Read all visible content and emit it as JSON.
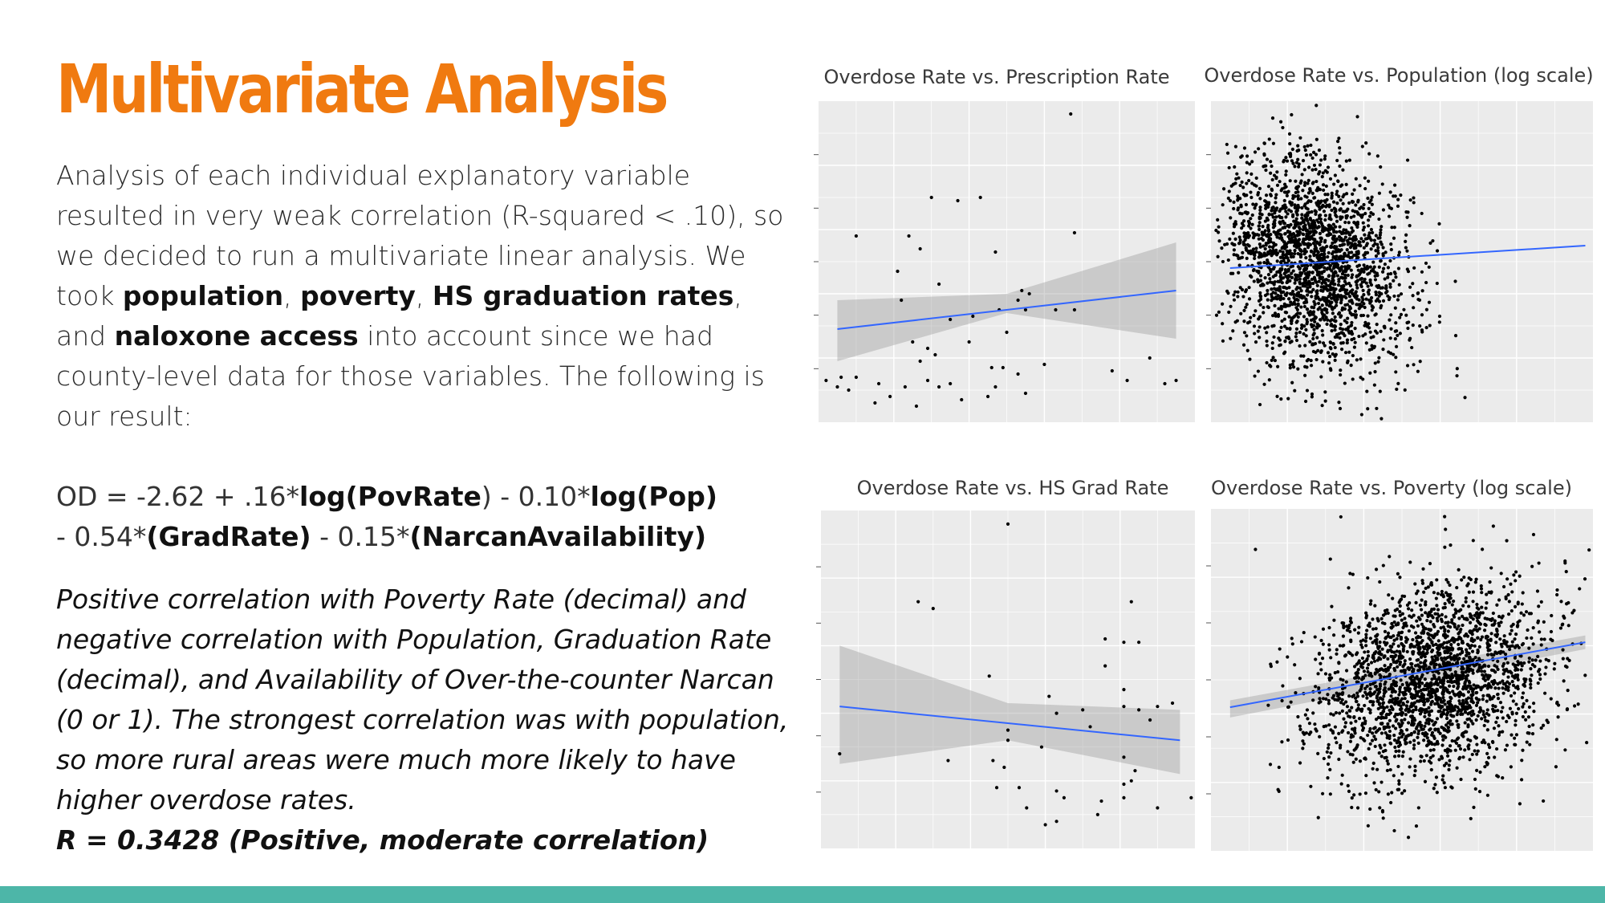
{
  "slide": {
    "title": "Multivariate Analysis",
    "intro": {
      "t1": "Analysis of each individual explanatory variable resulted in very weak correlation (R-squared < .10), so we decided to run a multivariate linear analysis. We took ",
      "v1": "population",
      "s1": ", ",
      "v2": "poverty",
      "s2": ", ",
      "v3": "HS graduation rates",
      "s3": ", and ",
      "v4": "naloxone access",
      "t2": " into account since we had county-level data for those variables. The following is our result:"
    },
    "equation": {
      "e1": "OD = -2.62 + .16*",
      "e2": "log(PovRate",
      "e3": ") - 0.10*",
      "e4": "log(Pop)",
      "e5": "- 0.54*",
      "e6": "(GradRate)",
      "e7": " - 0.15*",
      "e8": "(NarcanAvailability)"
    },
    "conclusion": {
      "text": "Positive correlation with Poverty Rate (decimal) and negative correlation with Population, Graduation Rate (decimal), and Availability of Over-the-counter Narcan (0 or 1). The strongest correlation was with population, so more rural areas were much more likely to have higher overdose rates.",
      "r_line": "R = 0.3428 (Positive, moderate correlation)"
    },
    "colors": {
      "title": "#f07a10",
      "footer_bar": "#4db6a8",
      "panel_bg": "#ebebeb",
      "fit_line": "#3366ff",
      "ribbon": "#999999"
    }
  },
  "chart_data": [
    {
      "type": "scatter",
      "title": "Overdose Rate vs. Prescription Rate",
      "xlabel": "",
      "ylabel": "",
      "xlim": [
        0,
        1
      ],
      "ylim": [
        0,
        1
      ],
      "points": [
        [
          0.67,
          0.96
        ],
        [
          0.3,
          0.7
        ],
        [
          0.37,
          0.69
        ],
        [
          0.43,
          0.7
        ],
        [
          0.1,
          0.58
        ],
        [
          0.24,
          0.58
        ],
        [
          0.27,
          0.54
        ],
        [
          0.47,
          0.53
        ],
        [
          0.68,
          0.59
        ],
        [
          0.21,
          0.47
        ],
        [
          0.32,
          0.43
        ],
        [
          0.22,
          0.38
        ],
        [
          0.53,
          0.38
        ],
        [
          0.54,
          0.41
        ],
        [
          0.56,
          0.4
        ],
        [
          0.55,
          0.35
        ],
        [
          0.35,
          0.32
        ],
        [
          0.48,
          0.35
        ],
        [
          0.41,
          0.33
        ],
        [
          0.5,
          0.28
        ],
        [
          0.29,
          0.23
        ],
        [
          0.4,
          0.25
        ],
        [
          0.63,
          0.35
        ],
        [
          0.68,
          0.35
        ],
        [
          0.25,
          0.25
        ],
        [
          0.27,
          0.19
        ],
        [
          0.31,
          0.21
        ],
        [
          0.46,
          0.17
        ],
        [
          0.49,
          0.17
        ],
        [
          0.53,
          0.15
        ],
        [
          0.6,
          0.18
        ],
        [
          0.02,
          0.13
        ],
        [
          0.06,
          0.14
        ],
        [
          0.1,
          0.14
        ],
        [
          0.05,
          0.11
        ],
        [
          0.08,
          0.1
        ],
        [
          0.19,
          0.08
        ],
        [
          0.23,
          0.11
        ],
        [
          0.29,
          0.13
        ],
        [
          0.32,
          0.11
        ],
        [
          0.47,
          0.11
        ],
        [
          0.38,
          0.07
        ],
        [
          0.45,
          0.08
        ],
        [
          0.16,
          0.12
        ],
        [
          0.26,
          0.05
        ],
        [
          0.55,
          0.09
        ],
        [
          0.78,
          0.16
        ],
        [
          0.82,
          0.13
        ],
        [
          0.88,
          0.2
        ],
        [
          0.95,
          0.13
        ],
        [
          0.92,
          0.12
        ],
        [
          0.35,
          0.12
        ],
        [
          0.15,
          0.06
        ]
      ],
      "fit": {
        "x": [
          0.05,
          0.95
        ],
        "y": [
          0.29,
          0.41
        ]
      },
      "ribbon": {
        "x": [
          0.05,
          0.5,
          0.95
        ],
        "upper": [
          0.38,
          0.4,
          0.56
        ],
        "lower": [
          0.19,
          0.34,
          0.26
        ]
      }
    },
    {
      "type": "scatter",
      "title": "Overdose Rate vs. Population (log scale)",
      "xlabel": "",
      "ylabel": "",
      "xlim": [
        0,
        1
      ],
      "ylim": [
        0,
        1
      ],
      "fit": {
        "x": [
          0.05,
          0.98
        ],
        "y": [
          0.48,
          0.55
        ]
      }
    },
    {
      "type": "scatter",
      "title": "Overdose Rate vs. HS Grad Rate",
      "xlabel": "",
      "ylabel": "",
      "xlim": [
        0,
        1
      ],
      "ylim": [
        0,
        1
      ],
      "points": [
        [
          0.5,
          0.96
        ],
        [
          0.26,
          0.73
        ],
        [
          0.3,
          0.71
        ],
        [
          0.83,
          0.73
        ],
        [
          0.76,
          0.62
        ],
        [
          0.81,
          0.61
        ],
        [
          0.85,
          0.61
        ],
        [
          0.76,
          0.54
        ],
        [
          0.45,
          0.51
        ],
        [
          0.81,
          0.47
        ],
        [
          0.61,
          0.45
        ],
        [
          0.81,
          0.42
        ],
        [
          0.9,
          0.42
        ],
        [
          0.63,
          0.4
        ],
        [
          0.7,
          0.41
        ],
        [
          0.94,
          0.43
        ],
        [
          0.85,
          0.41
        ],
        [
          0.72,
          0.36
        ],
        [
          0.88,
          0.38
        ],
        [
          0.5,
          0.35
        ],
        [
          0.5,
          0.32
        ],
        [
          0.59,
          0.3
        ],
        [
          0.81,
          0.27
        ],
        [
          0.05,
          0.28
        ],
        [
          0.34,
          0.26
        ],
        [
          0.46,
          0.26
        ],
        [
          0.84,
          0.23
        ],
        [
          0.81,
          0.19
        ],
        [
          0.47,
          0.18
        ],
        [
          0.53,
          0.18
        ],
        [
          0.63,
          0.17
        ],
        [
          0.65,
          0.15
        ],
        [
          0.75,
          0.14
        ],
        [
          0.81,
          0.15
        ],
        [
          0.9,
          0.12
        ],
        [
          0.99,
          0.15
        ],
        [
          0.74,
          0.1
        ],
        [
          0.63,
          0.08
        ],
        [
          0.6,
          0.07
        ],
        [
          0.55,
          0.12
        ],
        [
          0.83,
          0.2
        ],
        [
          0.49,
          0.24
        ]
      ],
      "fit": {
        "x": [
          0.05,
          0.96
        ],
        "y": [
          0.42,
          0.32
        ]
      },
      "ribbon": {
        "x": [
          0.05,
          0.5,
          0.96
        ],
        "upper": [
          0.6,
          0.43,
          0.41
        ],
        "lower": [
          0.25,
          0.32,
          0.22
        ]
      }
    },
    {
      "type": "scatter",
      "title": "Overdose Rate vs. Poverty (log scale)",
      "xlabel": "",
      "ylabel": "",
      "xlim": [
        0,
        1
      ],
      "ylim": [
        0,
        1
      ],
      "fit": {
        "x": [
          0.05,
          0.98
        ],
        "y": [
          0.42,
          0.61
        ]
      },
      "ribbon": {
        "x": [
          0.05,
          0.98
        ],
        "upper": [
          0.44,
          0.63
        ],
        "lower": [
          0.39,
          0.59
        ]
      }
    }
  ]
}
